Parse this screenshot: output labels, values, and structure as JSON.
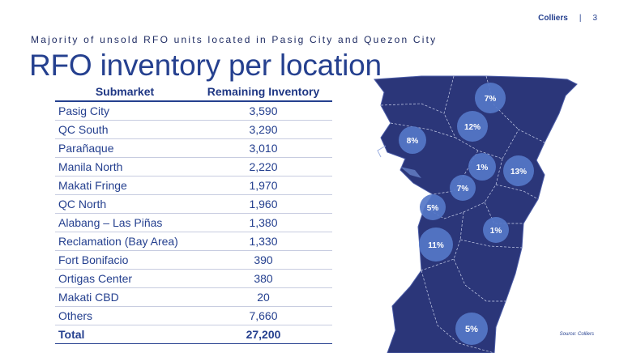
{
  "header": {
    "brand": "Colliers",
    "separator": "|",
    "page_number": "3"
  },
  "slide": {
    "subtitle": "Majority of unsold RFO units located in Pasig City and Quezon City",
    "title": "RFO inventory per location"
  },
  "table": {
    "headers": [
      "Submarket",
      "Remaining Inventory"
    ],
    "rows": [
      {
        "submarket": "Pasig City",
        "inventory": "3,590"
      },
      {
        "submarket": "QC South",
        "inventory": "3,290"
      },
      {
        "submarket": "Parañaque",
        "inventory": "3,010"
      },
      {
        "submarket": "Manila North",
        "inventory": "2,220"
      },
      {
        "submarket": "Makati Fringe",
        "inventory": "1,970"
      },
      {
        "submarket": "QC North",
        "inventory": "1,960"
      },
      {
        "submarket": "Alabang – Las Piñas",
        "inventory": "1,380"
      },
      {
        "submarket": "Reclamation (Bay Area)",
        "inventory": "1,330"
      },
      {
        "submarket": "Fort Bonifacio",
        "inventory": "390"
      },
      {
        "submarket": "Ortigas Center",
        "inventory": "380"
      },
      {
        "submarket": "Makati CBD",
        "inventory": "20"
      },
      {
        "submarket": "Others",
        "inventory": "7,660"
      }
    ],
    "total": {
      "label": "Total",
      "inventory": "27,200"
    }
  },
  "map": {
    "land_color": "#2b3679",
    "bubble_color": "#5577c8",
    "bubbles": [
      "7%",
      "12%",
      "8%",
      "1%",
      "13%",
      "7%",
      "5%",
      "1%",
      "11%",
      "5%"
    ]
  },
  "footer": {
    "source": "Source: Colliers"
  }
}
